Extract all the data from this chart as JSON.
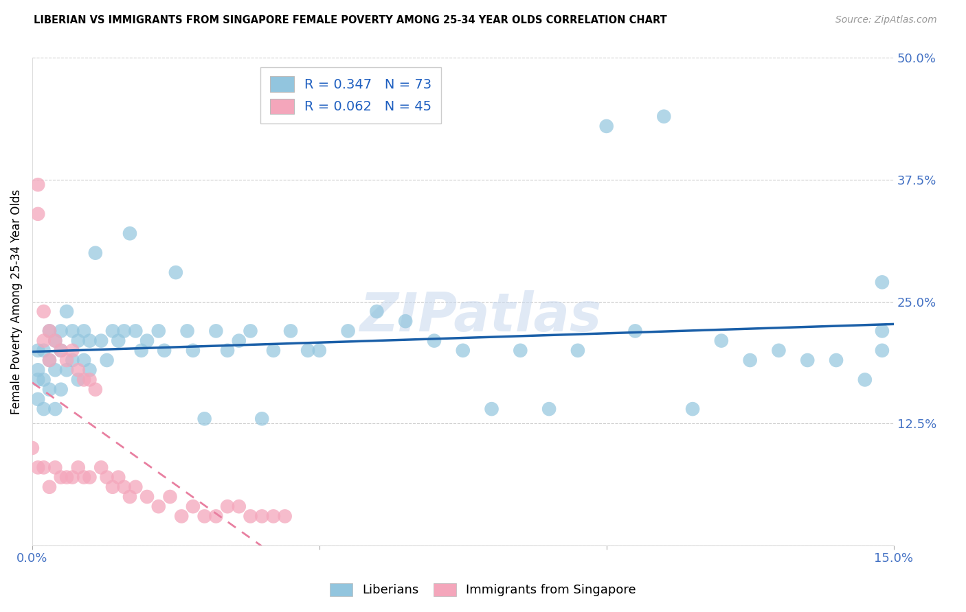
{
  "title": "LIBERIAN VS IMMIGRANTS FROM SINGAPORE FEMALE POVERTY AMONG 25-34 YEAR OLDS CORRELATION CHART",
  "source": "Source: ZipAtlas.com",
  "ylabel": "Female Poverty Among 25-34 Year Olds",
  "xlim": [
    0.0,
    0.15
  ],
  "ylim": [
    0.0,
    0.5
  ],
  "liberian_R": 0.347,
  "liberian_N": 73,
  "singapore_R": 0.062,
  "singapore_N": 45,
  "blue_color": "#92c5de",
  "blue_line_color": "#1a5fa8",
  "pink_color": "#f4a6bb",
  "pink_line_color": "#e87fa0",
  "watermark": "ZIPatlas",
  "legend_R_color": "#2060c0",
  "legend_N_color": "#2060c0",
  "tick_color": "#4472c4",
  "liberian_x": [
    0.001,
    0.001,
    0.001,
    0.001,
    0.002,
    0.002,
    0.002,
    0.003,
    0.003,
    0.003,
    0.004,
    0.004,
    0.004,
    0.005,
    0.005,
    0.005,
    0.006,
    0.006,
    0.007,
    0.007,
    0.008,
    0.008,
    0.009,
    0.009,
    0.01,
    0.01,
    0.011,
    0.012,
    0.013,
    0.014,
    0.015,
    0.016,
    0.017,
    0.018,
    0.019,
    0.02,
    0.022,
    0.023,
    0.025,
    0.027,
    0.028,
    0.03,
    0.032,
    0.034,
    0.036,
    0.038,
    0.04,
    0.042,
    0.045,
    0.048,
    0.05,
    0.055,
    0.06,
    0.065,
    0.07,
    0.075,
    0.08,
    0.085,
    0.09,
    0.095,
    0.1,
    0.105,
    0.11,
    0.115,
    0.12,
    0.125,
    0.13,
    0.135,
    0.14,
    0.145,
    0.148,
    0.148,
    0.148
  ],
  "liberian_y": [
    0.2,
    0.18,
    0.17,
    0.15,
    0.2,
    0.17,
    0.14,
    0.22,
    0.19,
    0.16,
    0.21,
    0.18,
    0.14,
    0.22,
    0.2,
    0.16,
    0.24,
    0.18,
    0.22,
    0.19,
    0.21,
    0.17,
    0.22,
    0.19,
    0.21,
    0.18,
    0.3,
    0.21,
    0.19,
    0.22,
    0.21,
    0.22,
    0.32,
    0.22,
    0.2,
    0.21,
    0.22,
    0.2,
    0.28,
    0.22,
    0.2,
    0.13,
    0.22,
    0.2,
    0.21,
    0.22,
    0.13,
    0.2,
    0.22,
    0.2,
    0.2,
    0.22,
    0.24,
    0.23,
    0.21,
    0.2,
    0.14,
    0.2,
    0.14,
    0.2,
    0.43,
    0.22,
    0.44,
    0.14,
    0.21,
    0.19,
    0.2,
    0.19,
    0.19,
    0.17,
    0.27,
    0.2,
    0.22
  ],
  "singapore_x": [
    0.0,
    0.001,
    0.001,
    0.001,
    0.002,
    0.002,
    0.002,
    0.003,
    0.003,
    0.003,
    0.004,
    0.004,
    0.005,
    0.005,
    0.006,
    0.006,
    0.007,
    0.007,
    0.008,
    0.008,
    0.009,
    0.009,
    0.01,
    0.01,
    0.011,
    0.012,
    0.013,
    0.014,
    0.015,
    0.016,
    0.017,
    0.018,
    0.02,
    0.022,
    0.024,
    0.026,
    0.028,
    0.03,
    0.032,
    0.034,
    0.036,
    0.038,
    0.04,
    0.042,
    0.044
  ],
  "singapore_y": [
    0.1,
    0.37,
    0.34,
    0.08,
    0.24,
    0.21,
    0.08,
    0.22,
    0.19,
    0.06,
    0.21,
    0.08,
    0.2,
    0.07,
    0.19,
    0.07,
    0.2,
    0.07,
    0.18,
    0.08,
    0.17,
    0.07,
    0.17,
    0.07,
    0.16,
    0.08,
    0.07,
    0.06,
    0.07,
    0.06,
    0.05,
    0.06,
    0.05,
    0.04,
    0.05,
    0.03,
    0.04,
    0.03,
    0.03,
    0.04,
    0.04,
    0.03,
    0.03,
    0.03,
    0.03
  ]
}
